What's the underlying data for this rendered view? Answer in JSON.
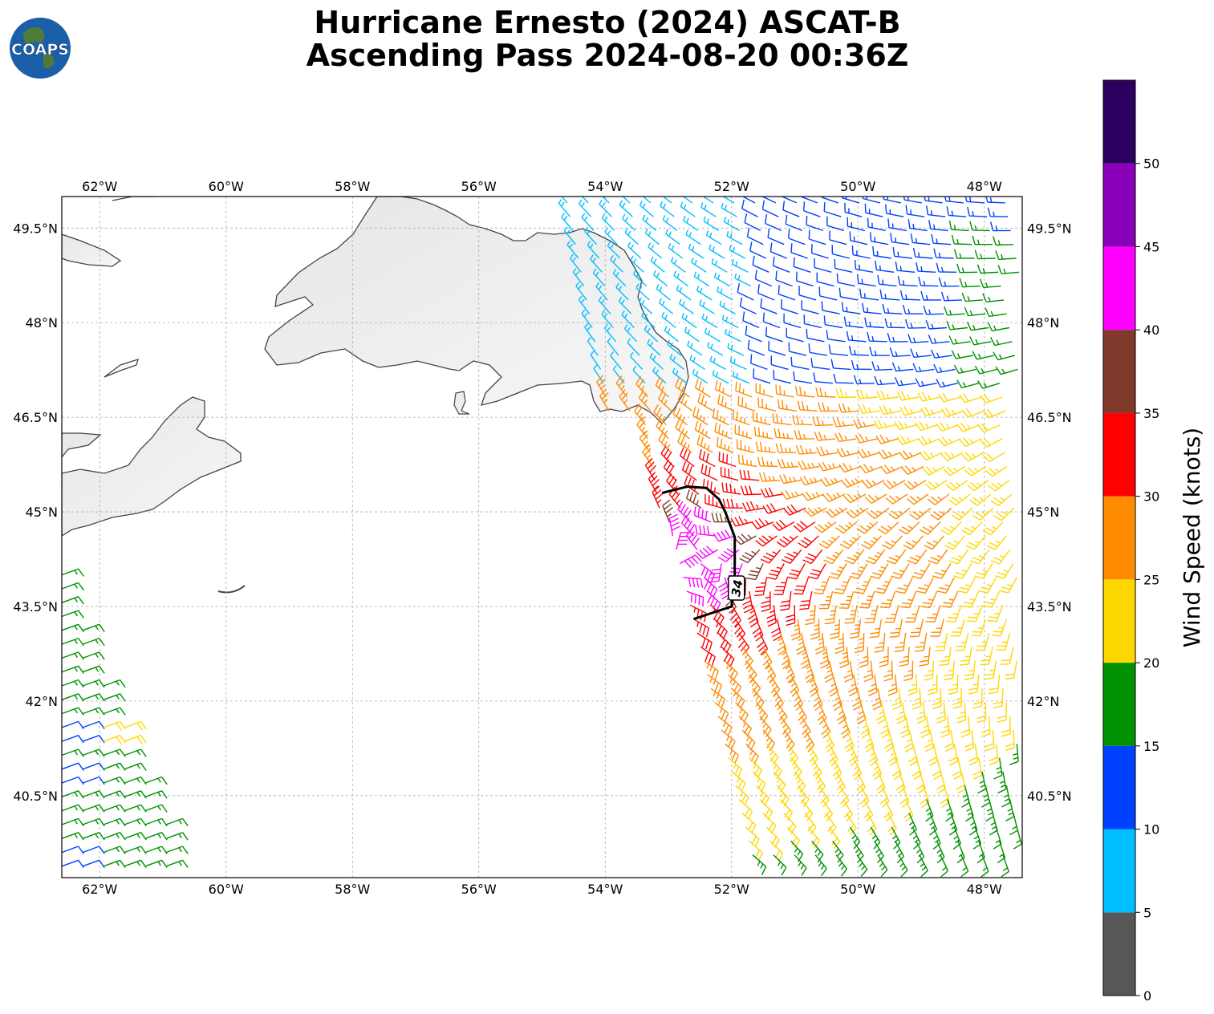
{
  "title": {
    "line1": "Hurricane Ernesto (2024) ASCAT-B",
    "line2": "Ascending Pass 2024-08-20 00:36Z"
  },
  "logo": {
    "text": "COAPS",
    "icon": "globe-logo-icon"
  },
  "map": {
    "lon_range": [
      -62.6,
      -47.4
    ],
    "lat_range": [
      39.2,
      50.0
    ],
    "lon_ticks": [
      "62°W",
      "60°W",
      "58°W",
      "56°W",
      "54°W",
      "52°W",
      "50°W",
      "48°W"
    ],
    "lon_tick_values": [
      -62,
      -60,
      -58,
      -56,
      -54,
      -52,
      -50,
      -48
    ],
    "lat_ticks": [
      "49.5°N",
      "48°N",
      "46.5°N",
      "45°N",
      "43.5°N",
      "42°N",
      "40.5°N"
    ],
    "lat_tick_values": [
      49.5,
      48,
      46.5,
      45,
      43.5,
      42,
      40.5
    ],
    "grid": true,
    "land_color": "#eeeeee",
    "coast_color": "#333333"
  },
  "track": {
    "label": "34",
    "color": "#000000",
    "points": [
      [
        -52.6,
        43.3
      ],
      [
        -52.0,
        43.5
      ],
      [
        -51.95,
        44.0
      ],
      [
        -51.95,
        44.6
      ],
      [
        -52.1,
        45.0
      ],
      [
        -52.2,
        45.2
      ],
      [
        -52.4,
        45.38
      ],
      [
        -52.7,
        45.4
      ],
      [
        -53.1,
        45.3
      ]
    ]
  },
  "colorbar": {
    "label": "Wind Speed (knots)",
    "ticks": [
      "0",
      "5",
      "10",
      "15",
      "20",
      "25",
      "30",
      "35",
      "40",
      "45",
      "50"
    ],
    "bounds": [
      0,
      5,
      10,
      15,
      20,
      25,
      30,
      35,
      40,
      45,
      50,
      55
    ],
    "colors": [
      "#575757",
      "#00bfff",
      "#0040ff",
      "#009000",
      "#ffd700",
      "#ff8c00",
      "#ff0000",
      "#80392b",
      "#ff00ff",
      "#8a00b8",
      "#2b005e"
    ]
  },
  "swaths": [
    {
      "lon_west_top": -54.6,
      "lon_west_bottom": -52.5,
      "lon_east": -47.45,
      "lat_top": 49.9,
      "lat_bottom": 39.4
    },
    {
      "lon_west": -62.6,
      "lon_east_top": -62.6,
      "lon_east_bottom": -60.6,
      "lat_top": 44.0,
      "lat_bottom": 39.2
    }
  ]
}
